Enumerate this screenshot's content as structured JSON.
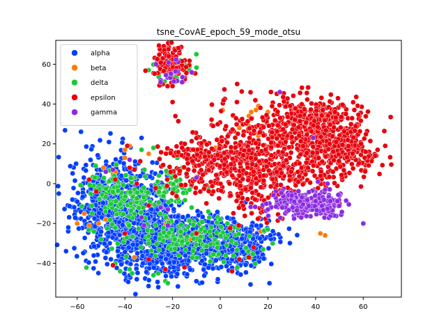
{
  "chart_data": {
    "type": "scatter",
    "title": "tsne_CovAE_epoch_59_mode_otsu",
    "xlabel": "",
    "ylabel": "",
    "xlim": [
      -69,
      76
    ],
    "ylim": [
      -57,
      72
    ],
    "xticks": [
      -60,
      -40,
      -20,
      0,
      20,
      40,
      60
    ],
    "yticks": [
      -40,
      -20,
      0,
      20,
      40,
      60
    ],
    "grid": false,
    "legend_position": "top-left",
    "series": [
      {
        "name": "alpha",
        "color": "#023eff",
        "clusters": [
          {
            "cx": -44,
            "cy": -12,
            "sx": 9,
            "sy": 12,
            "n": 650
          },
          {
            "cx": -20,
            "cy": -30,
            "sx": 10,
            "sy": 8,
            "n": 600
          },
          {
            "cx": 5,
            "cy": -30,
            "sx": 8,
            "sy": 6,
            "n": 380
          },
          {
            "cx": -30,
            "cy": -20,
            "sx": 6,
            "sy": 12,
            "n": 200
          }
        ],
        "points": [
          [
            -62,
            -8
          ],
          [
            -60,
            -9
          ],
          [
            -33,
            23
          ],
          [
            -17,
            59
          ],
          [
            -10,
            -49
          ],
          [
            -35,
            -48
          ],
          [
            -26,
            -52
          ],
          [
            21,
            -26
          ],
          [
            6,
            -37
          ],
          [
            -1,
            -48
          ],
          [
            -38,
            -46
          ],
          [
            17,
            -32
          ],
          [
            5,
            -38
          ]
        ]
      },
      {
        "name": "beta",
        "color": "#ff7c00",
        "clusters": [],
        "points": [
          [
            -40,
            17
          ],
          [
            -38,
            19
          ],
          [
            -40,
            13
          ],
          [
            -45,
            5
          ],
          [
            -49,
            8
          ],
          [
            -51,
            -20
          ],
          [
            -57,
            -15
          ],
          [
            -55,
            -21
          ],
          [
            -13,
            -28
          ],
          [
            -17,
            -27
          ],
          [
            -23,
            -20
          ],
          [
            -22,
            -18
          ],
          [
            -36,
            -37
          ],
          [
            -48,
            -18
          ],
          [
            -11,
            -28
          ],
          [
            1,
            37
          ],
          [
            16,
            39
          ],
          [
            13,
            36
          ],
          [
            15,
            37
          ],
          [
            12,
            34
          ],
          [
            20,
            36
          ],
          [
            8,
            28
          ],
          [
            12,
            29
          ],
          [
            -2,
            18
          ],
          [
            16,
            24
          ],
          [
            34,
            -12
          ],
          [
            36,
            -14
          ],
          [
            42,
            -25
          ],
          [
            44,
            -26
          ],
          [
            47,
            25
          ],
          [
            17,
            -24
          ],
          [
            13,
            9
          ],
          [
            -44,
            6
          ],
          [
            -60,
            -20
          ],
          [
            -30,
            15
          ],
          [
            -4,
            8
          ]
        ]
      },
      {
        "name": "delta",
        "color": "#1ac938",
        "clusters": [
          {
            "cx": -20,
            "cy": 59,
            "sx": 3.5,
            "sy": 3.5,
            "n": 45
          },
          {
            "cx": -20,
            "cy": -2,
            "sx": 3,
            "sy": 3.5,
            "n": 50
          },
          {
            "cx": -38,
            "cy": -12,
            "sx": 8,
            "sy": 10,
            "n": 110
          },
          {
            "cx": -20,
            "cy": -27,
            "sx": 6,
            "sy": 5,
            "n": 50
          },
          {
            "cx": -6,
            "cy": -25,
            "sx": 6,
            "sy": 5,
            "n": 45
          },
          {
            "cx": 5,
            "cy": -32,
            "sx": 8,
            "sy": 5,
            "n": 30
          },
          {
            "cx": -44,
            "cy": -2,
            "sx": 7,
            "sy": 7,
            "n": 50
          }
        ],
        "points": [
          [
            -28,
            -46
          ],
          [
            -26,
            -45
          ],
          [
            -37,
            -45
          ],
          [
            -38,
            -43
          ],
          [
            -23,
            -49
          ],
          [
            -22,
            -50
          ],
          [
            -50,
            -28
          ],
          [
            -53,
            -24
          ],
          [
            -12,
            -12
          ],
          [
            -5,
            -2
          ],
          [
            -5,
            -14
          ],
          [
            -10,
            65
          ],
          [
            -30,
            57
          ],
          [
            -15,
            60
          ],
          [
            -13,
            57
          ],
          [
            20,
            -23
          ],
          [
            18,
            -33
          ],
          [
            22,
            -30
          ],
          [
            0,
            -18
          ],
          [
            3,
            -20
          ],
          [
            -28,
            18
          ],
          [
            -33,
            17
          ],
          [
            -18,
            13
          ],
          [
            -16,
            8
          ],
          [
            -42,
            -44
          ],
          [
            -44,
            -40
          ],
          [
            -30,
            -30
          ]
        ]
      },
      {
        "name": "epsilon",
        "color": "#e8000b",
        "clusters": [
          {
            "cx": 8,
            "cy": 10,
            "sx": 11,
            "sy": 9,
            "n": 380
          },
          {
            "cx": 28,
            "cy": 22,
            "sx": 14,
            "sy": 12,
            "n": 280
          },
          {
            "cx": 46,
            "cy": 22,
            "sx": 9,
            "sy": 9,
            "n": 260
          },
          {
            "cx": 38,
            "cy": 35,
            "sx": 10,
            "sy": 6,
            "n": 150
          },
          {
            "cx": 55,
            "cy": 15,
            "sx": 6,
            "sy": 5,
            "n": 80
          },
          {
            "cx": 32,
            "cy": 5,
            "sx": 8,
            "sy": 5,
            "n": 80
          },
          {
            "cx": -10,
            "cy": 12,
            "sx": 9,
            "sy": 6,
            "n": 90
          },
          {
            "cx": -21,
            "cy": 60,
            "sx": 3.8,
            "sy": 4.5,
            "n": 120
          },
          {
            "cx": 15,
            "cy": -12,
            "sx": 5,
            "sy": 4,
            "n": 30
          }
        ],
        "points": [
          [
            -45,
            -41
          ],
          [
            -38,
            8
          ],
          [
            -36,
            7
          ],
          [
            -55,
            2
          ],
          [
            -52,
            -4
          ],
          [
            -40,
            -25
          ],
          [
            -23,
            -43
          ],
          [
            -15,
            -42
          ],
          [
            -30,
            -38
          ],
          [
            5,
            -44
          ],
          [
            8,
            -38
          ],
          [
            12,
            -37
          ],
          [
            14,
            -32
          ],
          [
            7,
            41
          ],
          [
            61,
            16
          ],
          [
            66,
            17
          ],
          [
            65,
            14
          ],
          [
            -39,
            19
          ],
          [
            -44,
            2
          ],
          [
            -30,
            -11
          ],
          [
            -35,
            0
          ],
          [
            -3,
            29
          ],
          [
            -20,
            41
          ],
          [
            45,
            -10
          ],
          [
            50,
            -10
          ],
          [
            -10,
            -25
          ]
        ]
      },
      {
        "name": "gamma",
        "color": "#8b2be2",
        "clusters": [
          {
            "cx": 35,
            "cy": -10,
            "sx": 7,
            "sy": 3,
            "n": 230
          },
          {
            "cx": 47,
            "cy": -12,
            "sx": 3,
            "sy": 2.5,
            "n": 40
          },
          {
            "cx": -20,
            "cy": 56,
            "sx": 2.5,
            "sy": 2.5,
            "n": 14
          }
        ],
        "points": [
          [
            25,
            46
          ],
          [
            60,
            -20
          ],
          [
            -16,
            51
          ],
          [
            -25,
            52
          ],
          [
            -12,
            56
          ],
          [
            -25,
            51
          ],
          [
            41,
            1
          ],
          [
            44,
            -3
          ],
          [
            45,
            0
          ],
          [
            39,
            23
          ],
          [
            30,
            -6
          ],
          [
            34,
            -17
          ],
          [
            26,
            -12
          ],
          [
            20,
            -13
          ],
          [
            -38,
            12
          ],
          [
            -33,
            -17
          ],
          [
            -45,
            7
          ],
          [
            -22,
            -13
          ],
          [
            -22,
            -21
          ],
          [
            -25,
            -12
          ],
          [
            -32,
            -21
          ],
          [
            -48,
            6
          ],
          [
            -10,
            3
          ],
          [
            -27,
            60
          ]
        ]
      }
    ]
  }
}
